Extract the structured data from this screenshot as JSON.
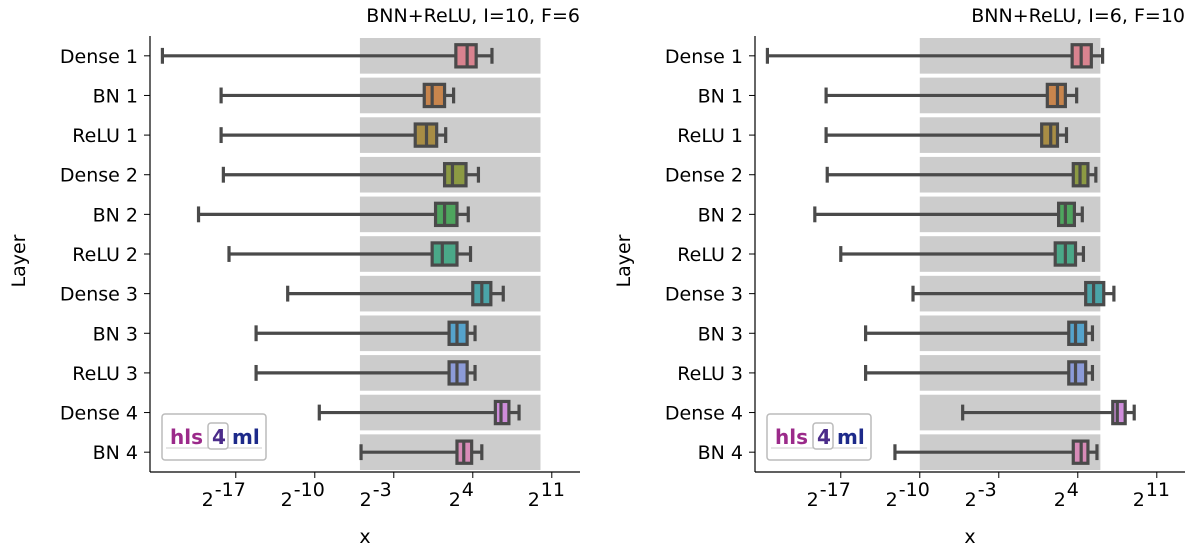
{
  "figure": {
    "xlabel": "x",
    "ylabel": "Layer",
    "logo": {
      "part1": "hls",
      "part2": "4",
      "part3": "ml"
    }
  },
  "chart_data": [
    {
      "type": "box",
      "title": "BNN+ReLU, I=10, F=6",
      "xlabel": "x",
      "ylabel": "Layer",
      "xscale": "log2",
      "xlim_log2": [
        -24.6,
        13.5
      ],
      "xticks": [
        {
          "exp": -17,
          "label": "-17"
        },
        {
          "exp": -10,
          "label": "-10"
        },
        {
          "exp": -3,
          "label": "-3"
        },
        {
          "exp": 4,
          "label": "4"
        },
        {
          "exp": 11,
          "label": "11"
        }
      ],
      "representable_range_log2": [
        -6,
        10
      ],
      "categories": [
        "Dense 1",
        "BN 1",
        "ReLU 1",
        "Dense 2",
        "BN 2",
        "ReLU 2",
        "Dense 3",
        "BN 3",
        "ReLU 3",
        "Dense 4",
        "BN 4"
      ],
      "boxes_log2": [
        {
          "whisker_low": -23.5,
          "q1": 2.5,
          "median": 3.5,
          "q3": 4.3,
          "whisker_high": 5.7
        },
        {
          "whisker_low": -18.3,
          "q1": -0.3,
          "median": 0.4,
          "q3": 1.5,
          "whisker_high": 2.3
        },
        {
          "whisker_low": -18.3,
          "q1": -1.1,
          "median": -0.1,
          "q3": 0.8,
          "whisker_high": 1.6
        },
        {
          "whisker_low": -18.1,
          "q1": 1.5,
          "median": 2.2,
          "q3": 3.4,
          "whisker_high": 4.5
        },
        {
          "whisker_low": -20.3,
          "q1": 0.7,
          "median": 1.5,
          "q3": 2.6,
          "whisker_high": 3.6
        },
        {
          "whisker_low": -17.6,
          "q1": 0.4,
          "median": 1.3,
          "q3": 2.6,
          "whisker_high": 3.8
        },
        {
          "whisker_low": -12.4,
          "q1": 4.0,
          "median": 4.8,
          "q3": 5.6,
          "whisker_high": 6.7
        },
        {
          "whisker_low": -15.2,
          "q1": 1.9,
          "median": 2.6,
          "q3": 3.5,
          "whisker_high": 4.2
        },
        {
          "whisker_low": -15.2,
          "q1": 1.9,
          "median": 2.6,
          "q3": 3.5,
          "whisker_high": 4.2
        },
        {
          "whisker_low": -9.6,
          "q1": 6.0,
          "median": 6.5,
          "q3": 7.2,
          "whisker_high": 8.1
        },
        {
          "whisker_low": -5.9,
          "q1": 2.6,
          "median": 3.2,
          "q3": 3.9,
          "whisker_high": 4.8
        }
      ],
      "colors": [
        "#d9838f",
        "#c8854d",
        "#a88d45",
        "#8c9a43",
        "#4ea55e",
        "#4aa888",
        "#4aa4a8",
        "#55a3cc",
        "#8c9bd8",
        "#cf8ddb",
        "#d88bb8"
      ]
    },
    {
      "type": "box",
      "title": "BNN+ReLU, I=6, F=10",
      "xlabel": "x",
      "ylabel": "Layer",
      "xscale": "log2",
      "xlim_log2": [
        -24.6,
        13.5
      ],
      "xticks": [
        {
          "exp": -17,
          "label": "-17"
        },
        {
          "exp": -10,
          "label": "-10"
        },
        {
          "exp": -3,
          "label": "-3"
        },
        {
          "exp": 4,
          "label": "4"
        },
        {
          "exp": 11,
          "label": "11"
        }
      ],
      "representable_range_log2": [
        -10,
        6
      ],
      "categories": [
        "Dense 1",
        "BN 1",
        "ReLU 1",
        "Dense 2",
        "BN 2",
        "ReLU 2",
        "Dense 3",
        "BN 3",
        "ReLU 3",
        "Dense 4",
        "BN 4"
      ],
      "boxes_log2": [
        {
          "whisker_low": -23.5,
          "q1": 3.5,
          "median": 4.3,
          "q3": 5.2,
          "whisker_high": 6.2
        },
        {
          "whisker_low": -18.3,
          "q1": 1.3,
          "median": 2.2,
          "q3": 2.9,
          "whisker_high": 3.9
        },
        {
          "whisker_low": -18.3,
          "q1": 0.8,
          "median": 1.6,
          "q3": 2.2,
          "whisker_high": 3.0
        },
        {
          "whisker_low": -18.2,
          "q1": 3.6,
          "median": 4.2,
          "q3": 4.9,
          "whisker_high": 5.6
        },
        {
          "whisker_low": -19.3,
          "q1": 2.3,
          "median": 2.9,
          "q3": 3.7,
          "whisker_high": 4.4
        },
        {
          "whisker_low": -17.0,
          "q1": 2.0,
          "median": 2.9,
          "q3": 3.8,
          "whisker_high": 4.5
        },
        {
          "whisker_low": -10.6,
          "q1": 4.7,
          "median": 5.4,
          "q3": 6.3,
          "whisker_high": 7.2
        },
        {
          "whisker_low": -14.8,
          "q1": 3.2,
          "median": 3.8,
          "q3": 4.7,
          "whisker_high": 5.3
        },
        {
          "whisker_low": -14.8,
          "q1": 3.2,
          "median": 3.8,
          "q3": 4.7,
          "whisker_high": 5.3
        },
        {
          "whisker_low": -6.2,
          "q1": 7.1,
          "median": 7.5,
          "q3": 8.2,
          "whisker_high": 9.0
        },
        {
          "whisker_low": -12.2,
          "q1": 3.6,
          "median": 4.3,
          "q3": 4.9,
          "whisker_high": 5.7
        }
      ],
      "colors": [
        "#d9838f",
        "#c8854d",
        "#a88d45",
        "#8c9a43",
        "#4ea55e",
        "#4aa888",
        "#4aa4a8",
        "#55a3cc",
        "#8c9bd8",
        "#cf8ddb",
        "#d88bb8"
      ]
    }
  ]
}
